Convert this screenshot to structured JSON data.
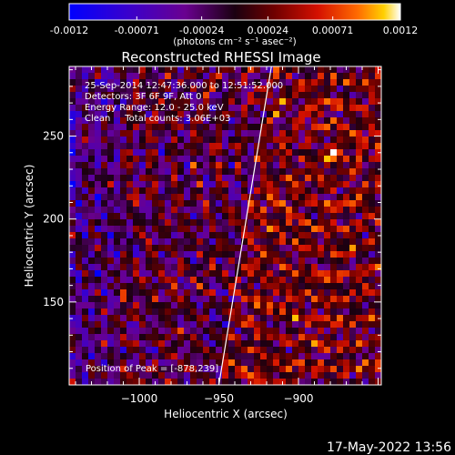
{
  "colorbar": {
    "tick_labels": [
      "-0.0012",
      "-0.00071",
      "-0.00024",
      "0.00024",
      "0.00071",
      "0.0012"
    ],
    "tick_values": [
      -0.0012,
      -0.00071,
      -0.00024,
      0.00024,
      0.00071,
      0.0012
    ],
    "range": [
      -0.0012,
      0.0012
    ],
    "units_text": "(photons cm⁻² s⁻¹ asec⁻²)"
  },
  "chart_data": {
    "type": "heatmap",
    "title": "Reconstructed RHESSI Image",
    "xlabel": "Heliocentric X (arcsec)",
    "ylabel": "Heliocentric Y (arcsec)",
    "xlim": [
      -1044,
      -848
    ],
    "ylim": [
      100,
      292
    ],
    "x_ticks": [
      -1000,
      -950,
      -900
    ],
    "x_tick_labels": [
      "−1000",
      "−950",
      "−900"
    ],
    "y_ticks": [
      150,
      200,
      250
    ],
    "y_tick_labels": [
      "150",
      "200",
      "250"
    ],
    "limb_line": [
      [
        -950,
        100
      ],
      [
        -917,
        292
      ]
    ],
    "annotations": [
      "25-Sep-2014 12:47:36.000 to 12:51:52.000",
      "Detectors: 3F 6F 9F, Att 0",
      "Energy Range: 12.0 - 25.0 keV",
      "Clean     Total counts: 3.06E+03"
    ],
    "peak_label": "Position of Peak = [-878,239]",
    "peak_position": [
      -878,
      239
    ],
    "grid": false
  },
  "timestamp": "17-May-2022 13:56",
  "colors": {
    "background": "#000000",
    "foreground": "#ffffff",
    "colormap": [
      "#0000ff",
      "#3c00c0",
      "#6a0090",
      "#1a0010",
      "#6e0000",
      "#d01000",
      "#ff6000",
      "#ffc000",
      "#ffffff"
    ]
  }
}
